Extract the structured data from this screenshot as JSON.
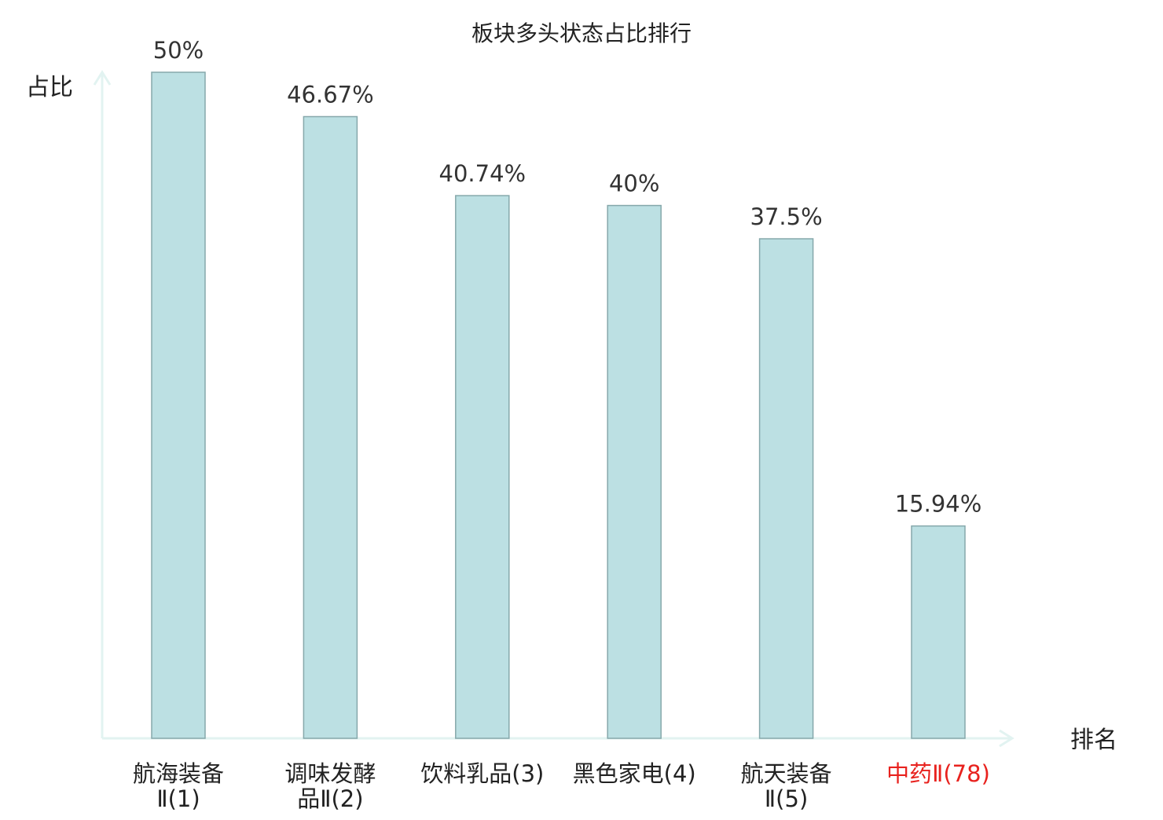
{
  "chart_data": {
    "type": "bar",
    "title": "板块多头状态占比排行",
    "ylabel": "占比",
    "xlabel": "排名",
    "categories": [
      {
        "lines": [
          "航海装备",
          "Ⅱ(1)"
        ],
        "highlight": false
      },
      {
        "lines": [
          "调味发酵",
          "品Ⅱ(2)"
        ],
        "highlight": false
      },
      {
        "lines": [
          "饮料乳品(3)"
        ],
        "highlight": false
      },
      {
        "lines": [
          "黑色家电(4)"
        ],
        "highlight": false
      },
      {
        "lines": [
          "航天装备",
          "Ⅱ(5)"
        ],
        "highlight": false
      },
      {
        "lines": [
          "中药Ⅱ(78)"
        ],
        "highlight": true
      }
    ],
    "values": [
      50,
      46.67,
      40.74,
      40,
      37.5,
      15.94
    ],
    "value_labels": [
      "50%",
      "46.67%",
      "40.74%",
      "40%",
      "37.5%",
      "15.94%"
    ],
    "ylim": [
      0,
      50
    ],
    "grid": false,
    "colors": {
      "bar_fill": "#bce0e3",
      "bar_stroke": "#86a8ab",
      "axis": "#e2f3f1",
      "text": "#222222",
      "highlight_text": "#e8221e"
    }
  }
}
